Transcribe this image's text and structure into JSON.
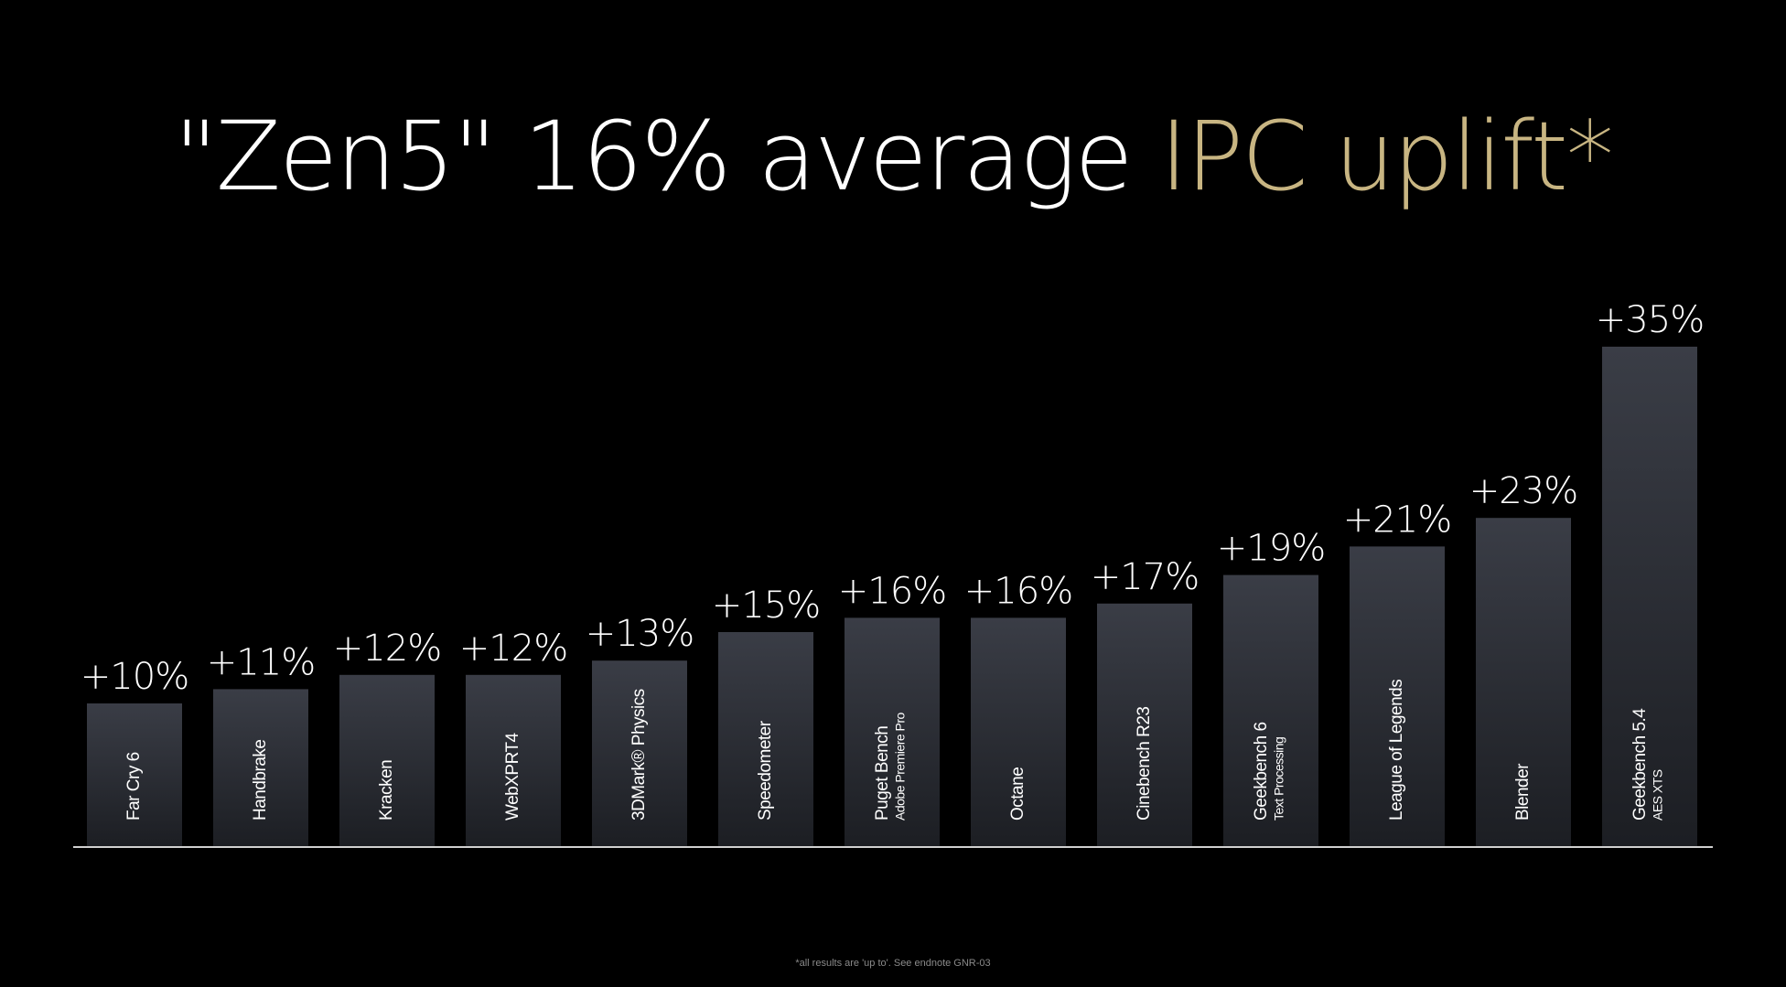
{
  "slide": {
    "title_main": "\"Zen5\" 16% average ",
    "title_accent": "IPC uplift*",
    "footnote": "*all results are 'up to'. See endnote GNR-03"
  },
  "colors": {
    "background": "#000000",
    "title": "#ffffff",
    "accent": "#c8b582",
    "bar_top": "#3a3d46",
    "bar_bottom": "#1c1e23",
    "baseline": "#d0d0d0"
  },
  "chart_data": {
    "type": "bar",
    "title": "\"Zen5\" 16% average IPC uplift*",
    "categories": [
      [
        "Far Cry 6"
      ],
      [
        "Handbrake"
      ],
      [
        "Kracken"
      ],
      [
        "WebXPRT4"
      ],
      [
        "3DMark® Physics"
      ],
      [
        "Speedometer"
      ],
      [
        "Puget Bench",
        "Adobe Premiere Pro"
      ],
      [
        "Octane"
      ],
      [
        "Cinebench R23"
      ],
      [
        "Geekbench 6",
        "Text Processing"
      ],
      [
        "League of Legends"
      ],
      [
        "Blender"
      ],
      [
        "Geekbench 5.4",
        "AES XTS"
      ]
    ],
    "values": [
      10,
      11,
      12,
      12,
      13,
      15,
      16,
      16,
      17,
      19,
      21,
      23,
      35
    ],
    "value_labels": [
      "+10%",
      "+11%",
      "+12%",
      "+12%",
      "+13%",
      "+15%",
      "+16%",
      "+16%",
      "+17%",
      "+19%",
      "+21%",
      "+23%",
      "+35%"
    ],
    "ylim": [
      0,
      35
    ],
    "xlabel": "",
    "ylabel": "",
    "grid": false,
    "legend": "none"
  }
}
